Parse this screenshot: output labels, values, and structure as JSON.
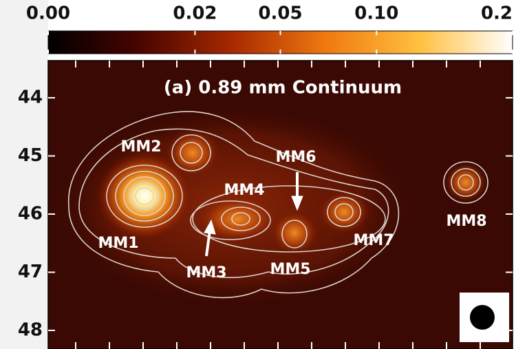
{
  "chart_data": {
    "type": "map",
    "title": "(a) 0.89 mm Continuum",
    "colorbar": {
      "lim": [
        0,
        0.2
      ],
      "scale": "sqrt",
      "ticks": [
        {
          "value": 0,
          "label": "0.00"
        },
        0.02,
        0.05,
        {
          "value": 0.1,
          "label": "0.10"
        },
        0.2
      ],
      "colormap": [
        "#000000",
        "#4a0500",
        "#a82a00",
        "#f07a10",
        "#ffc040",
        "#ffffff"
      ]
    },
    "ylim": [
      48.32,
      43.36
    ],
    "yticks": [
      44,
      45,
      46,
      47,
      48
    ],
    "sources": [
      "MM1",
      "MM2",
      "MM3",
      "MM4",
      "MM5",
      "MM6",
      "MM7",
      "MM8"
    ]
  }
}
